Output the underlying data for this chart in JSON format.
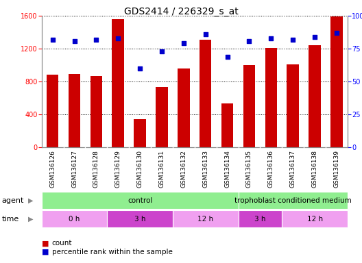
{
  "title": "GDS2414 / 226329_s_at",
  "samples": [
    "GSM136126",
    "GSM136127",
    "GSM136128",
    "GSM136129",
    "GSM136130",
    "GSM136131",
    "GSM136132",
    "GSM136133",
    "GSM136134",
    "GSM136135",
    "GSM136136",
    "GSM136137",
    "GSM136138",
    "GSM136139"
  ],
  "counts": [
    880,
    890,
    870,
    1560,
    340,
    730,
    960,
    1310,
    530,
    1000,
    1210,
    1010,
    1240,
    1590
  ],
  "percentile_ranks": [
    82,
    81,
    82,
    83,
    60,
    73,
    79,
    86,
    69,
    81,
    83,
    82,
    84,
    87
  ],
  "bar_color": "#cc0000",
  "dot_color": "#0000cc",
  "ylim_left": [
    0,
    1600
  ],
  "ylim_right": [
    0,
    100
  ],
  "yticks_left": [
    0,
    400,
    800,
    1200,
    1600
  ],
  "yticks_right": [
    0,
    25,
    50,
    75,
    100
  ],
  "xtick_bg": "#d3d3d3",
  "agent_groups": [
    {
      "label": "control",
      "start": 0,
      "end": 9,
      "color": "#90ee90"
    },
    {
      "label": "trophoblast conditioned medium",
      "start": 9,
      "end": 14,
      "color": "#90ee90"
    }
  ],
  "time_groups": [
    {
      "label": "0 h",
      "start": 0,
      "end": 3,
      "color": "#f0a0f0"
    },
    {
      "label": "3 h",
      "start": 3,
      "end": 6,
      "color": "#cc44cc"
    },
    {
      "label": "12 h",
      "start": 6,
      "end": 9,
      "color": "#f0a0f0"
    },
    {
      "label": "3 h",
      "start": 9,
      "end": 11,
      "color": "#cc44cc"
    },
    {
      "label": "12 h",
      "start": 11,
      "end": 14,
      "color": "#f0a0f0"
    }
  ],
  "agent_label": "agent",
  "time_label": "time",
  "legend_count_label": "count",
  "legend_percentile_label": "percentile rank within the sample",
  "title_fontsize": 10,
  "tick_fontsize": 7,
  "label_fontsize": 8,
  "row_label_fontsize": 8,
  "group_label_fontsize": 7.5
}
